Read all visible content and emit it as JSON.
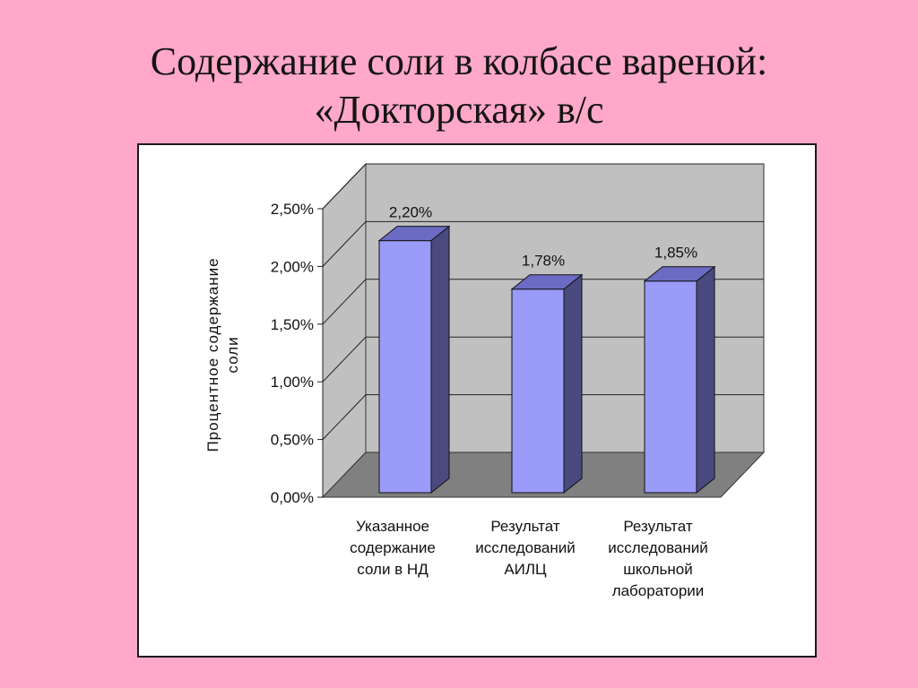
{
  "slide": {
    "title_line1": "Содержание соли в колбасе вареной:",
    "title_line2": "«Докторская» в/с"
  },
  "colors": {
    "background": "#ffa8c8",
    "bar_front": "#9a9af8",
    "bar_side": "#4a4a80",
    "bar_top": "#6b6bc4",
    "wall": "#c0c0c0",
    "floor": "#808080"
  },
  "chart_data": {
    "type": "bar",
    "title": "",
    "ylabel": "Процентное содержание соли",
    "ylabel_lines": [
      "Процентное содержание",
      "соли"
    ],
    "ylim": [
      0,
      2.5
    ],
    "yticks": [
      0,
      0.5,
      1.0,
      1.5,
      2.0,
      2.5
    ],
    "ytick_labels": [
      "0,00%",
      "0,50%",
      "1,00%",
      "1,50%",
      "2,00%",
      "2,50%"
    ],
    "grid": true,
    "legend": "none",
    "categories": [
      [
        "Указанное",
        "содержание",
        "соли в НД"
      ],
      [
        "Результат",
        "исследований",
        "АИЛЦ"
      ],
      [
        "Результат",
        "исследований",
        "школьной",
        "лаборатории"
      ]
    ],
    "values": [
      2.2,
      1.78,
      1.85
    ],
    "data_labels": [
      "2,20%",
      "1,78%",
      "1,85%"
    ]
  }
}
